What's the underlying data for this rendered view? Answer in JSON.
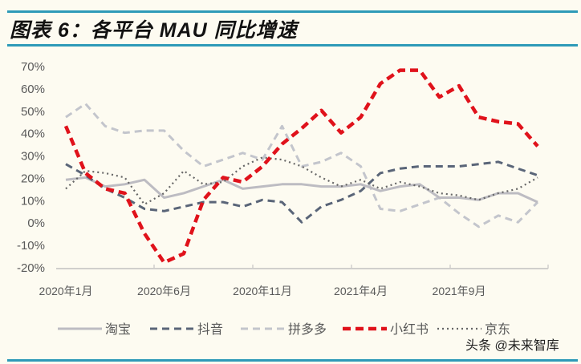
{
  "title": "图表 6：各平台 MAU 同比增速",
  "watermark": "头条 @未来智库",
  "chart_data": {
    "type": "line",
    "title": "图表 6：各平台 MAU 同比增速",
    "xlabel": "",
    "ylabel": "",
    "x": [
      "2020年1月",
      "2020年2月",
      "2020年3月",
      "2020年4月",
      "2020年5月",
      "2020年6月",
      "2020年7月",
      "2020年8月",
      "2020年9月",
      "2020年10月",
      "2020年11月",
      "2020年12月",
      "2021年1月",
      "2021年2月",
      "2021年3月",
      "2021年4月",
      "2021年5月",
      "2021年6月",
      "2021年7月",
      "2021年8月",
      "2021年9月",
      "2021年10月",
      "2021年11月",
      "2021年12月",
      "2022年1月"
    ],
    "x_tick_labels": [
      "2020年1月",
      "2020年6月",
      "2020年11月",
      "2021年4月",
      "2021年9月"
    ],
    "y_tick_labels": [
      "70%",
      "60%",
      "50%",
      "40%",
      "30%",
      "20%",
      "10%",
      "0%",
      "-10%",
      "-20%"
    ],
    "ylim": [
      -20,
      70
    ],
    "grid": false,
    "legend_position": "bottom",
    "series": [
      {
        "name": "淘宝",
        "color": "#bdbcc2",
        "style": "solid",
        "values": [
          19,
          20,
          16,
          17,
          19,
          11,
          13,
          16,
          19,
          15,
          16,
          17,
          17,
          16,
          16,
          17,
          14,
          16,
          17,
          11,
          11,
          10,
          13,
          13,
          9
        ]
      },
      {
        "name": "抖音",
        "color": "#5a6578",
        "style": "dashed",
        "values": [
          26,
          21,
          15,
          11,
          6,
          5,
          7,
          9,
          9,
          7,
          10,
          9,
          0,
          7,
          10,
          14,
          22,
          24,
          25,
          25,
          25,
          26,
          27,
          24,
          21
        ]
      },
      {
        "name": "拼多多",
        "color": "#c3c5cc",
        "style": "dashed",
        "values": [
          47,
          53,
          43,
          40,
          41,
          41,
          32,
          25,
          28,
          31,
          28,
          43,
          25,
          27,
          31,
          25,
          6,
          5,
          8,
          11,
          4,
          -2,
          3,
          0,
          9
        ]
      },
      {
        "name": "小红书",
        "color": "#e0121b",
        "style": "dashed-bold",
        "values": [
          43,
          22,
          15,
          13,
          -5,
          -18,
          -14,
          10,
          20,
          18,
          25,
          35,
          42,
          50,
          40,
          47,
          62,
          68,
          68,
          56,
          61,
          47,
          45,
          44,
          34
        ]
      },
      {
        "name": "京东",
        "color": "#666666",
        "style": "dotted",
        "values": [
          15,
          23,
          22,
          20,
          8,
          13,
          23,
          17,
          18,
          25,
          29,
          28,
          25,
          20,
          16,
          19,
          15,
          18,
          16,
          13,
          12,
          10,
          13,
          15,
          20
        ]
      }
    ]
  }
}
